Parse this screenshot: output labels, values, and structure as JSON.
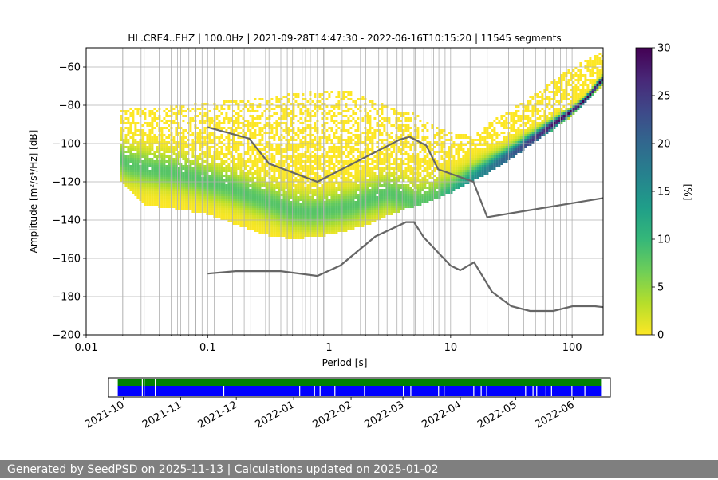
{
  "chart_data": {
    "type": "heatmap",
    "title": "HL.CRE4..EHZ | 100.0Hz | 2021-09-28T14:47:30 - 2022-06-16T10:15:20 | 11545 segments",
    "xlabel": "Period [s]",
    "ylabel": "Amplitude [m²/s⁴/Hz] [dB]",
    "xscale": "log",
    "xlim": [
      0.01,
      180
    ],
    "ylim": [
      -200,
      -50
    ],
    "x_ticks": [
      0.01,
      0.1,
      1,
      10,
      100
    ],
    "x_tick_labels": [
      "0.01",
      "0.1",
      "1",
      "10",
      "100"
    ],
    "y_ticks": [
      -200,
      -180,
      -160,
      -140,
      -120,
      -100,
      -80,
      -60
    ],
    "y_tick_labels": [
      "−200",
      "−180",
      "−160",
      "−140",
      "−120",
      "−100",
      "−80",
      "−60"
    ],
    "grid": true,
    "colorbar": {
      "label": "[%]",
      "range": [
        0,
        30
      ],
      "ticks": [
        0,
        5,
        10,
        15,
        20,
        25,
        30
      ],
      "tick_labels": [
        "0",
        "5",
        "10",
        "15",
        "20",
        "25",
        "30"
      ],
      "colormap": "viridis_r"
    },
    "colormap_stops": [
      "#fde725",
      "#b5de2b",
      "#6ece58",
      "#35b779",
      "#1f9e89",
      "#26828e",
      "#31688e",
      "#3e4989",
      "#482878",
      "#440154"
    ],
    "grid_color": "#b0b0b0",
    "noise_model_color": "#666666",
    "psd_density": {
      "period_range": [
        0.019,
        180
      ],
      "mode_curve": {
        "period": [
          0.019,
          0.022,
          0.03,
          0.05,
          0.08,
          0.1,
          0.15,
          0.2,
          0.3,
          0.5,
          0.7,
          1,
          1.5,
          2,
          3,
          4,
          5,
          6,
          7,
          8,
          10,
          12,
          15,
          20,
          30,
          50,
          70,
          100,
          130,
          180
        ],
        "db": [
          -108,
          -111,
          -113,
          -115,
          -118,
          -120,
          -123,
          -126,
          -130,
          -135,
          -136,
          -135,
          -133,
          -130,
          -126,
          -128,
          -131,
          -130,
          -129,
          -128,
          -126,
          -123,
          -119,
          -114,
          -107,
          -97,
          -90,
          -83,
          -77,
          -66
        ]
      },
      "upper_envelope": {
        "period": [
          0.019,
          0.05,
          0.1,
          0.2,
          0.5,
          1,
          1.5,
          2,
          3,
          5,
          7,
          10,
          15,
          20,
          40,
          60,
          100,
          180
        ],
        "db": [
          -82,
          -80,
          -79,
          -77,
          -74,
          -72,
          -73,
          -76,
          -80,
          -84,
          -90,
          -94,
          -96,
          -90,
          -78,
          -70,
          -60,
          -52
        ]
      },
      "lower_envelope": {
        "period": [
          0.019,
          0.03,
          0.05,
          0.1,
          0.2,
          0.3,
          0.5,
          1,
          2,
          3,
          4,
          5,
          7,
          10,
          12,
          15,
          20,
          30,
          50,
          100,
          180
        ],
        "db": [
          -119,
          -132,
          -134,
          -137,
          -144,
          -148,
          -150,
          -148,
          -143,
          -138,
          -135,
          -133,
          -130,
          -126,
          -123,
          -120,
          -116,
          -109,
          -99,
          -86,
          -70
        ]
      },
      "mode_max_percent": 30
    },
    "noise_models": [
      {
        "name": "high-noise-model",
        "period": [
          0.1,
          0.22,
          0.32,
          0.8,
          3.8,
          4.6,
          6.3,
          7.9,
          15.4,
          20,
          180
        ],
        "db": [
          -91.5,
          -97.4,
          -110.5,
          -120,
          -98,
          -96.5,
          -101,
          -113.5,
          -120,
          -138.5,
          -128.5
        ]
      },
      {
        "name": "low-noise-model",
        "period": [
          0.1,
          0.17,
          0.4,
          0.8,
          1.24,
          2.4,
          4.3,
          5,
          6,
          10,
          12,
          15.6,
          21.9,
          31.6,
          45,
          70,
          101,
          154,
          180
        ],
        "db": [
          -168,
          -166.7,
          -166.7,
          -169.2,
          -163.7,
          -148.6,
          -141.1,
          -141.1,
          -149,
          -163.8,
          -166.2,
          -162.1,
          -177.5,
          -185,
          -187.5,
          -187.5,
          -185,
          -185,
          -185.5
        ]
      }
    ],
    "availability": {
      "axis_labels": [
        "2021-10",
        "2021-11",
        "2021-12",
        "2022-01",
        "2022-02",
        "2022-03",
        "2022-04",
        "2022-05",
        "2022-06"
      ],
      "axis_start": "2021-09-23",
      "axis_end": "2022-06-21",
      "data_start": "2021-09-28",
      "data_end": "2022-06-16",
      "colors": {
        "top_bar": "#008000",
        "bottom_bar": "#0000ff",
        "gaps": "#ffffff"
      },
      "top_bar_gaps": [
        "2021-10-11",
        "2021-10-12",
        "2021-10-18"
      ],
      "bottom_bar_gaps": [
        "2021-10-11",
        "2021-10-12",
        "2021-10-18",
        "2021-11-24",
        "2022-01-04",
        "2022-01-12",
        "2022-01-15",
        "2022-01-23",
        "2022-02-08",
        "2022-03-01",
        "2022-03-05",
        "2022-03-20",
        "2022-03-23",
        "2022-04-08",
        "2022-04-12",
        "2022-04-15",
        "2022-05-06",
        "2022-05-10",
        "2022-05-12",
        "2022-05-17",
        "2022-05-20",
        "2022-05-31",
        "2022-06-07"
      ]
    }
  },
  "footer": {
    "text": "Generated by SeedPSD on 2025-11-13 | Calculations updated on 2025-01-02"
  }
}
